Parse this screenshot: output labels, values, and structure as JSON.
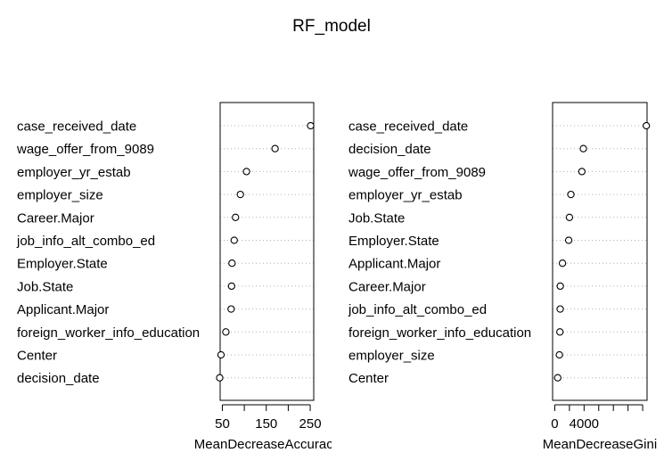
{
  "title": "RF_model",
  "chart_data": [
    {
      "type": "scatter",
      "style": "dotchart",
      "xlabel": "MeanDecreaseAccuracy",
      "ylabel": "",
      "xlim": [
        45,
        258
      ],
      "xticks": [
        50,
        100,
        150,
        200,
        250
      ],
      "xtick_labels": [
        "50",
        "",
        "150",
        "",
        "250"
      ],
      "grid": "dotted horizontal guide lines",
      "categories": [
        "case_received_date",
        "wage_offer_from_9089",
        "employer_yr_estab",
        "employer_size",
        "Career.Major",
        "job_info_alt_combo_ed",
        "Employer.State",
        "Job.State",
        "Applicant.Major",
        "foreign_worker_info_education",
        "Center",
        "decision_date"
      ],
      "values": [
        251,
        170,
        105,
        91,
        80,
        77,
        72,
        71,
        70,
        58,
        47,
        44
      ]
    },
    {
      "type": "scatter",
      "style": "dotchart",
      "xlabel": "MeanDecreaseGini",
      "ylabel": "",
      "xlim": [
        -300,
        12600
      ],
      "xticks": [
        0,
        2000,
        4000,
        6000,
        8000,
        10000,
        12000
      ],
      "xtick_labels": [
        "0",
        "",
        "4000",
        "",
        "",
        "",
        ""
      ],
      "grid": "dotted horizontal guide lines",
      "categories": [
        "case_received_date",
        "decision_date",
        "wage_offer_from_9089",
        "employer_yr_estab",
        "Job.State",
        "Employer.State",
        "Applicant.Major",
        "Career.Major",
        "job_info_alt_combo_ed",
        "foreign_worker_info_education",
        "employer_size",
        "Center"
      ],
      "values": [
        12500,
        3900,
        3700,
        2200,
        2000,
        1900,
        1050,
        750,
        740,
        700,
        630,
        400
      ]
    }
  ]
}
